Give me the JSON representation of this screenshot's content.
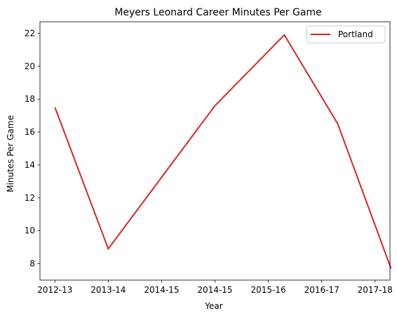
{
  "chart_data": {
    "type": "line",
    "title": "Meyers Leonard Career Minutes Per Game",
    "xlabel": "Year",
    "ylabel": "Minutes Per Game",
    "categories": [
      "2012-13",
      "2013-14",
      "2014-15",
      "2014-15",
      "2015-16",
      "2016-17",
      "2017-18"
    ],
    "x_ticks": [
      {
        "label": "2012-13",
        "value": 0
      },
      {
        "label": "2013-14",
        "value": 1
      },
      {
        "label": "2014-15",
        "value": 2
      },
      {
        "label": "2014-15",
        "value": 3
      },
      {
        "label": "2015-16",
        "value": 4
      },
      {
        "label": "2016-17",
        "value": 5
      },
      {
        "label": "2017-18",
        "value": 6
      }
    ],
    "xlim": [
      -0.28,
      6.28
    ],
    "ylim": [
      7.0,
      22.7
    ],
    "y_ticks": [
      8,
      10,
      12,
      14,
      16,
      18,
      20,
      22
    ],
    "grid": false,
    "legend_position": "top-right",
    "series": [
      {
        "name": "Portland",
        "color": "#d62728",
        "points": [
          {
            "x": 0,
            "y": 17.5
          },
          {
            "x": 1,
            "y": 8.9
          },
          {
            "x": 3,
            "y": 17.6
          },
          {
            "x": 4.3,
            "y": 21.9
          },
          {
            "x": 5.3,
            "y": 16.5
          },
          {
            "x": 6.3,
            "y": 7.7
          }
        ]
      }
    ]
  }
}
